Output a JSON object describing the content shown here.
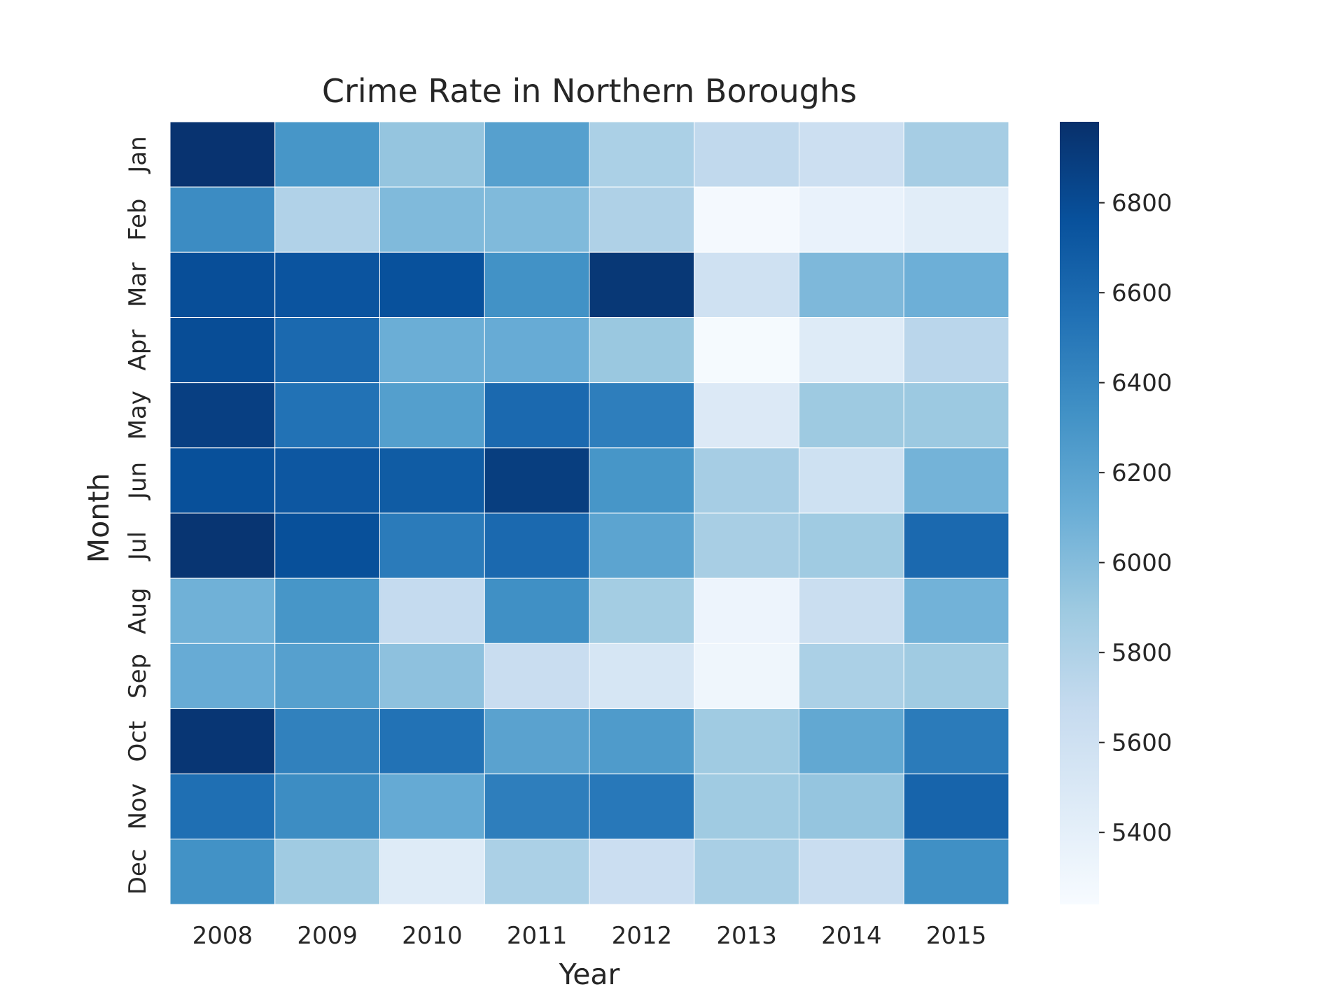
{
  "chart_data": {
    "type": "heatmap",
    "title": "Crime Rate in Northern Boroughs",
    "xlabel": "Year",
    "ylabel": "Month",
    "x_categories": [
      "2008",
      "2009",
      "2010",
      "2011",
      "2012",
      "2013",
      "2014",
      "2015"
    ],
    "y_categories": [
      "Jan",
      "Feb",
      "Mar",
      "Apr",
      "May",
      "Jun",
      "Jul",
      "Aug",
      "Sep",
      "Oct",
      "Nov",
      "Dec"
    ],
    "values": [
      [
        6960,
        6300,
        5930,
        6220,
        5820,
        5700,
        5620,
        5850
      ],
      [
        6370,
        5790,
        6020,
        6020,
        5800,
        5270,
        5360,
        5430
      ],
      [
        6780,
        6740,
        6760,
        6330,
        6930,
        5590,
        6030,
        6100
      ],
      [
        6790,
        6600,
        6110,
        6130,
        5910,
        5260,
        5460,
        5740
      ],
      [
        6880,
        6540,
        6230,
        6600,
        6460,
        5480,
        5890,
        5900
      ],
      [
        6770,
        6720,
        6690,
        6890,
        6300,
        5850,
        5600,
        6070
      ],
      [
        6950,
        6770,
        6480,
        6600,
        6190,
        5840,
        5880,
        6600
      ],
      [
        6090,
        6300,
        5680,
        6340,
        5860,
        5330,
        5640,
        6080
      ],
      [
        6130,
        6220,
        5960,
        5650,
        5530,
        5310,
        5820,
        5880
      ],
      [
        6940,
        6440,
        6540,
        6200,
        6260,
        5880,
        6160,
        6480
      ],
      [
        6560,
        6360,
        6140,
        6460,
        6500,
        5880,
        5930,
        6630
      ],
      [
        6330,
        5880,
        5460,
        5820,
        5630,
        5830,
        5650,
        6340
      ]
    ],
    "zrange": [
      5240,
      6980
    ],
    "colorbar_ticks": [
      5400,
      5600,
      5800,
      6000,
      6200,
      6400,
      6600,
      6800
    ],
    "colormap": "Blues",
    "colors": {
      "low": "#f7fbff",
      "high": "#08306b",
      "cell_border": "#ffffff"
    }
  }
}
